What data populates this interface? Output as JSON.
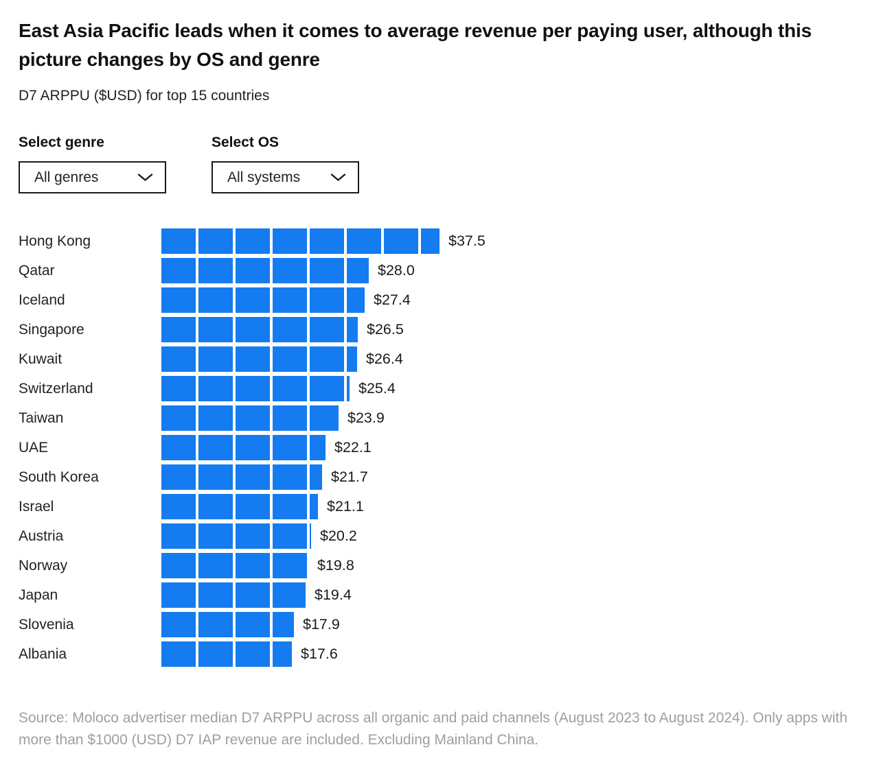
{
  "header": {
    "title": "East Asia Pacific leads when it comes to average revenue per paying user, although this picture changes by OS and genre",
    "subtitle": "D7 ARPPU ($USD) for top 15 countries"
  },
  "filters": {
    "genre": {
      "label": "Select genre",
      "selected_value": "All genres",
      "icon": "chevron-down"
    },
    "os": {
      "label": "Select OS",
      "selected_value": "All systems",
      "icon": "chevron-down"
    }
  },
  "chart_data": {
    "type": "bar",
    "orientation": "horizontal",
    "title": "D7 ARPPU ($USD) for top 15 countries",
    "unit": "USD",
    "xlim": [
      0,
      40
    ],
    "segment_block_dollars": 5,
    "bar_color": "#147bf0",
    "grid": false,
    "legend": false,
    "categories": [
      "Hong Kong",
      "Qatar",
      "Iceland",
      "Singapore",
      "Kuwait",
      "Switzerland",
      "Taiwan",
      "UAE",
      "South Korea",
      "Israel",
      "Austria",
      "Norway",
      "Japan",
      "Slovenia",
      "Albania"
    ],
    "values": [
      37.5,
      28.0,
      27.4,
      26.5,
      26.4,
      25.4,
      23.9,
      22.1,
      21.7,
      21.1,
      20.2,
      19.8,
      19.4,
      17.9,
      17.6
    ],
    "value_labels": [
      "$37.5",
      "$28.0",
      "$27.4",
      "$26.5",
      "$26.4",
      "$25.4",
      "$23.9",
      "$22.1",
      "$21.7",
      "$21.1",
      "$20.2",
      "$19.8",
      "$19.4",
      "$17.9",
      "$17.6"
    ]
  },
  "footer": {
    "source": "Source: Moloco advertiser median D7 ARPPU across all organic and paid channels (August 2023 to August 2024). Only apps with more than $1000 (USD) D7 IAP revenue are included. Excluding Mainland China."
  }
}
